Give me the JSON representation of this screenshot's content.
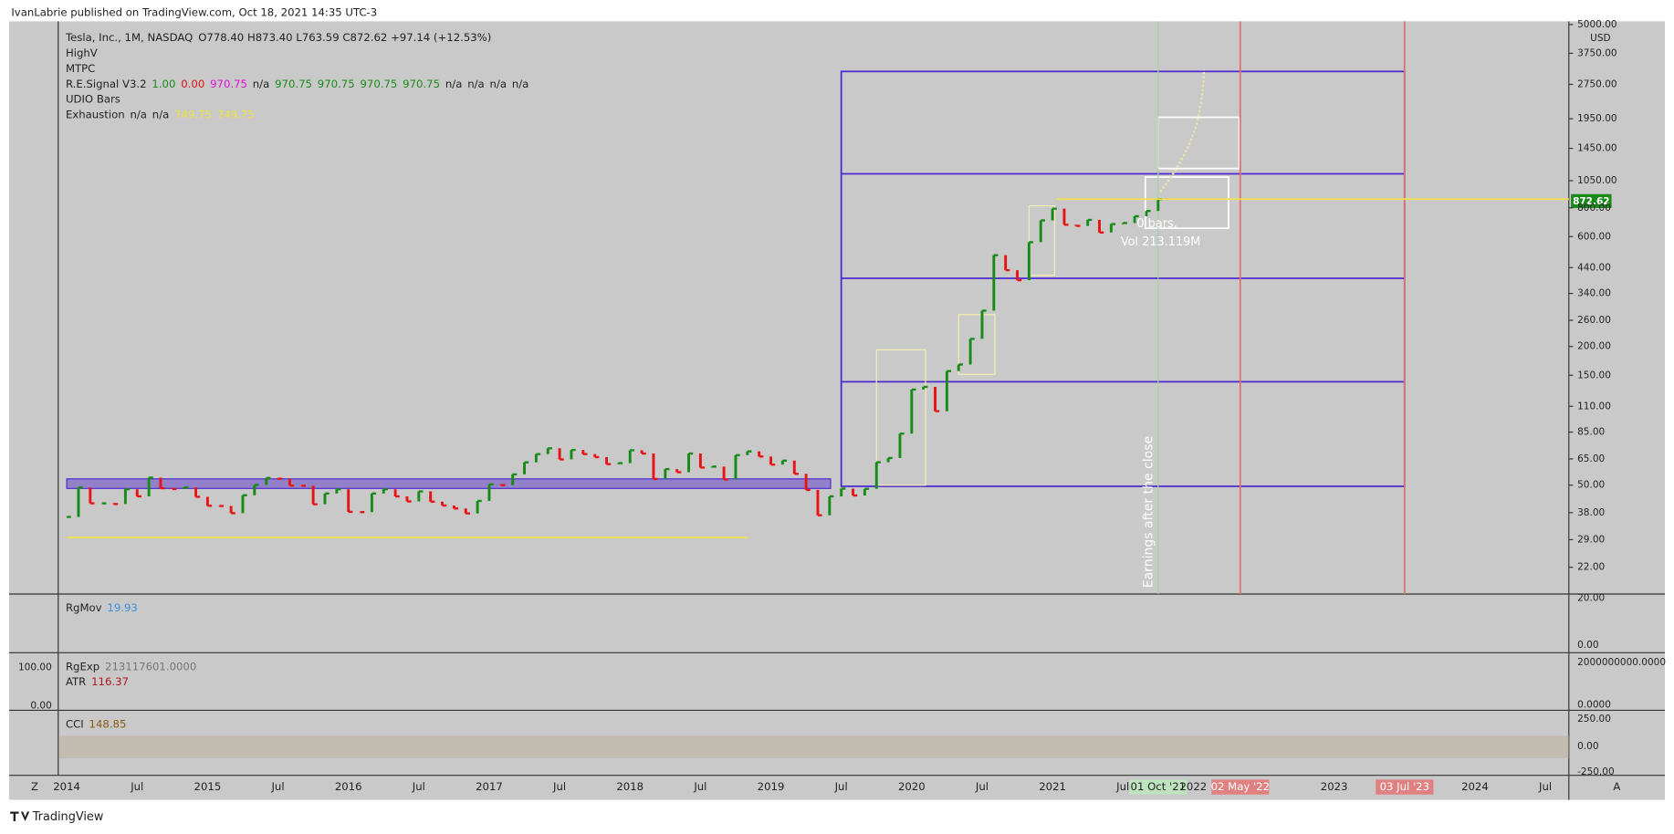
{
  "header": "IvanLabrie published on TradingView.com, Oct 18, 2021 14:35 UTC-3",
  "legend": [
    [
      {
        "text": "Tesla, Inc., 1M, NASDAQ",
        "color": "#222222"
      },
      {
        "text": "O778.40 H873.40 L763.59 C872.62 +97.14 (+12.53%)",
        "color": "#222222"
      }
    ],
    [
      {
        "text": "HighV",
        "color": "#222222"
      }
    ],
    [
      {
        "text": "MTPC",
        "color": "#222222"
      }
    ],
    [
      {
        "text": "R.E.Signal V3.2",
        "color": "#222222"
      },
      {
        "text": "1.00",
        "color": "#1a8a1a"
      },
      {
        "text": "0.00",
        "color": "#e01010"
      },
      {
        "text": "970.75",
        "color": "#e010e0"
      },
      {
        "text": "n/a",
        "color": "#222222"
      },
      {
        "text": "970.75",
        "color": "#1a8a1a"
      },
      {
        "text": "970.75",
        "color": "#1a8a1a"
      },
      {
        "text": "970.75",
        "color": "#1a8a1a"
      },
      {
        "text": "970.75",
        "color": "#1a8a1a"
      },
      {
        "text": "n/a",
        "color": "#222222"
      },
      {
        "text": "n/a",
        "color": "#222222"
      },
      {
        "text": "n/a",
        "color": "#222222"
      },
      {
        "text": "n/a",
        "color": "#222222"
      }
    ],
    [
      {
        "text": "UDIO Bars",
        "color": "#222222"
      }
    ],
    [
      {
        "text": "Exhaustion",
        "color": "#222222"
      },
      {
        "text": "n/a",
        "color": "#222222"
      },
      {
        "text": "n/a",
        "color": "#222222"
      },
      {
        "text": "749.75",
        "color": "#f0e040"
      },
      {
        "text": "749.75",
        "color": "#f0e040"
      }
    ]
  ],
  "annotations": {
    "bars": "0 bars,",
    "volume": "Vol 213.119M",
    "earnings": "Earnings after the close",
    "currency": "USD",
    "last_price": "872.62"
  },
  "chart_data": {
    "type": "candlestick",
    "log_scale": true,
    "up_color": "#178a17",
    "down_color": "#e81414",
    "x": [
      "2014-01",
      "2014-02",
      "2014-03",
      "2014-04",
      "2014-05",
      "2014-06",
      "2014-07",
      "2014-08",
      "2014-09",
      "2014-10",
      "2014-11",
      "2014-12",
      "2015-01",
      "2015-02",
      "2015-03",
      "2015-04",
      "2015-05",
      "2015-06",
      "2015-07",
      "2015-08",
      "2015-09",
      "2015-10",
      "2015-11",
      "2015-12",
      "2016-01",
      "2016-02",
      "2016-03",
      "2016-04",
      "2016-05",
      "2016-06",
      "2016-07",
      "2016-08",
      "2016-09",
      "2016-10",
      "2016-11",
      "2016-12",
      "2017-01",
      "2017-02",
      "2017-03",
      "2017-04",
      "2017-05",
      "2017-06",
      "2017-07",
      "2017-08",
      "2017-09",
      "2017-10",
      "2017-11",
      "2017-12",
      "2018-01",
      "2018-02",
      "2018-03",
      "2018-04",
      "2018-05",
      "2018-06",
      "2018-07",
      "2018-08",
      "2018-09",
      "2018-10",
      "2018-11",
      "2018-12",
      "2019-01",
      "2019-02",
      "2019-03",
      "2019-04",
      "2019-05",
      "2019-06",
      "2019-07",
      "2019-08",
      "2019-09",
      "2019-10",
      "2019-11",
      "2019-12",
      "2020-01",
      "2020-02",
      "2020-03",
      "2020-04",
      "2020-05",
      "2020-06",
      "2020-07",
      "2020-08",
      "2020-09",
      "2020-10",
      "2020-11",
      "2020-12",
      "2021-01",
      "2021-02",
      "2021-03",
      "2021-04",
      "2021-05",
      "2021-06",
      "2021-07",
      "2021-08",
      "2021-09",
      "2021-10"
    ],
    "close": [
      36.4,
      48.9,
      41.7,
      41.7,
      41.4,
      48,
      44.7,
      53.9,
      48.5,
      48.1,
      48.9,
      44.5,
      40.7,
      40.6,
      37.8,
      45.2,
      50.1,
      53.7,
      53.3,
      49.8,
      49.7,
      41.3,
      46,
      48,
      38.3,
      38.2,
      46,
      48,
      44.7,
      42.5,
      47,
      42.4,
      40.8,
      39.6,
      37.7,
      42.7,
      50.4,
      50,
      55.7,
      62.8,
      68.2,
      72.3,
      64.7,
      71.1,
      68.2,
      66.2,
      61.7,
      62.3,
      70.9,
      68.6,
      53.2,
      58.7,
      56.9,
      68.6,
      59.6,
      60.2,
      52.9,
      67.5,
      70.1,
      66.6,
      61.4,
      63.9,
      56,
      47.7,
      37,
      44.7,
      48.3,
      45.1,
      48.2,
      62.9,
      65.6,
      83.7,
      130.1,
      133.6,
      104.8,
      156.4,
      167,
      215.9,
      286.2,
      498.3,
      429,
      388,
      567.6,
      705.7,
      793.5,
      675.5,
      667.9,
      709.4,
      625.2,
      680,
      687.2,
      735.7,
      775.5,
      872.62
    ],
    "ylim": [
      17.2,
      5000
    ],
    "yticks": [
      {
        "value": 22,
        "label": "22.00"
      },
      {
        "value": 29,
        "label": "29.00"
      },
      {
        "value": 38,
        "label": "38.00"
      },
      {
        "value": 50,
        "label": "50.00"
      },
      {
        "value": 65,
        "label": "65.00"
      },
      {
        "value": 85,
        "label": "85.00"
      },
      {
        "value": 110,
        "label": "110.00"
      },
      {
        "value": 150,
        "label": "150.00"
      },
      {
        "value": 200,
        "label": "200.00"
      },
      {
        "value": 260,
        "label": "260.00"
      },
      {
        "value": 340,
        "label": "340.00"
      },
      {
        "value": 440,
        "label": "440.00"
      },
      {
        "value": 600,
        "label": "600.00"
      },
      {
        "value": 800,
        "label": "800.00"
      },
      {
        "value": 1050,
        "label": "1050.00"
      },
      {
        "value": 1450,
        "label": "1450.00"
      },
      {
        "value": 1950,
        "label": "1950.00"
      },
      {
        "value": 2750,
        "label": "2750.00"
      },
      {
        "value": 3750,
        "label": "3750.00"
      },
      {
        "value": 5000,
        "label": "5000.00"
      }
    ]
  },
  "time_axis": [
    "Z",
    "2014",
    "Jul",
    "2015",
    "Jul",
    "2016",
    "Jul",
    "2017",
    "Jul",
    "2018",
    "Jul",
    "2019",
    "Jul",
    "2020",
    "Jul",
    "2021",
    "Jul",
    "01 Oct '21",
    "2022",
    "02 May '22",
    "2023",
    "03 Jul '23",
    "2024",
    "Jul",
    "A"
  ],
  "panes": [
    {
      "title": "RgMov",
      "value": "19.93",
      "value_color": "#3d8fe0",
      "right_labels": [
        "20.00",
        "0.00"
      ],
      "left_labels": []
    },
    {
      "title": "RgExp",
      "value": "213117601.0000",
      "value_color": "#777777",
      "sub_title": "ATR",
      "sub_value": "116.37",
      "sub_color": "#b01818",
      "right_labels": [
        "2000000000.0000",
        "0.0000"
      ],
      "left_labels": [
        "100.00",
        "0.00"
      ]
    },
    {
      "title": "CCI",
      "value": "148.85",
      "value_color": "#8a5a10",
      "right_labels": [
        "250.00",
        "0.00",
        "-250.00"
      ],
      "left_labels": []
    }
  ],
  "footer": "TradingView"
}
